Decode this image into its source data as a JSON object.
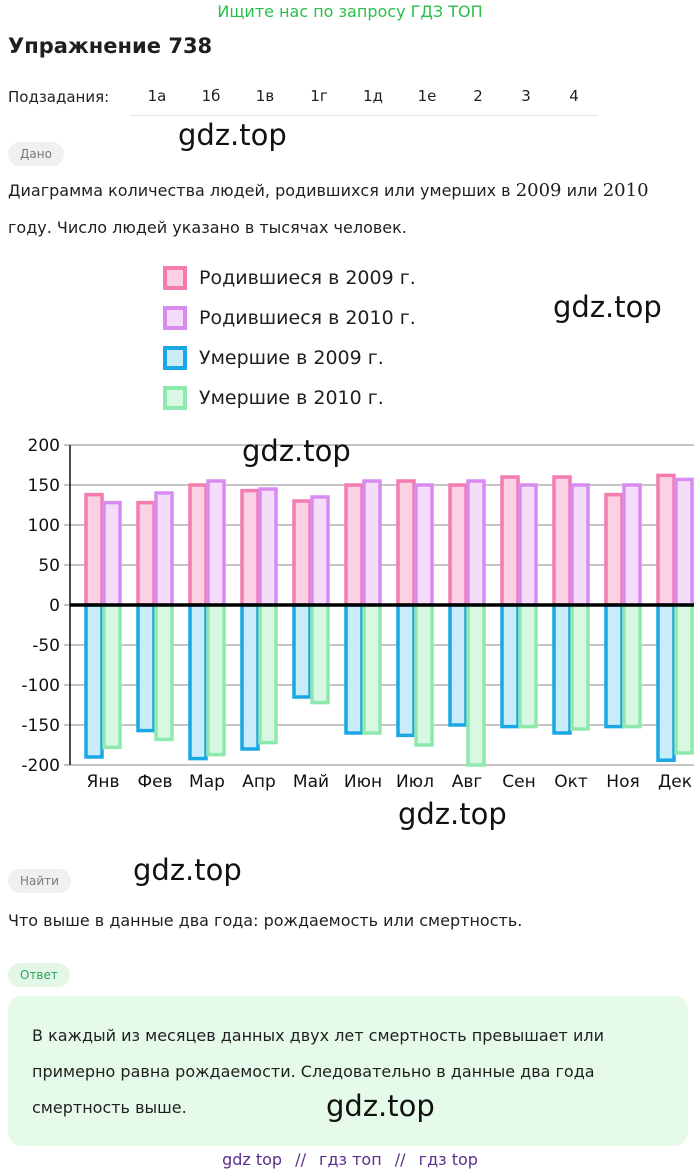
{
  "banner": "Ищите нас по запросу ГДЗ ТОП",
  "title": "Упражнение 738",
  "subtasks": {
    "label": "Подзадания:",
    "items": [
      "1а",
      "1б",
      "1в",
      "1г",
      "1д",
      "1е",
      "2",
      "3",
      "4"
    ],
    "active_index": 3
  },
  "watermark": "gdz.top",
  "given": {
    "pill": "Дано",
    "line1_prefix": "Диаграмма количества людей, родившихся или умерших в ",
    "year1": "2009",
    "or": " или ",
    "year2": "2010",
    "line2": "году. Число людей указано в тысячах человек."
  },
  "find": {
    "pill": "Найти",
    "text": "Что выше в данные два года: рождаемость или смертность."
  },
  "answer": {
    "pill": "Ответ",
    "line1": "В каждый из месяцев данных двух лет смертность превышает или",
    "line2": "примерно равна рождаемости. Следовательно в данные два года",
    "line3": "смертность выше."
  },
  "footer": {
    "link1": "gdz top",
    "sep1": "//",
    "link2": "гдз топ",
    "sep2": "//",
    "link3": "гдз top"
  },
  "colors": {
    "births2009_stroke": "#f47cb0",
    "births2009_fill": "#fbd1e3",
    "births2010_stroke": "#d88cf0",
    "births2010_fill": "#f5dcfb",
    "deaths2009_stroke": "#1aa7e6",
    "deaths2009_fill": "#c9ecfa",
    "deaths2010_stroke": "#8fe8ae",
    "deaths2010_fill": "#d9f8e4",
    "active_tab": "#1aa3e0",
    "banner": "#27c04a",
    "answer_bg": "#e6faea"
  },
  "chart_data": {
    "type": "bar",
    "categories": [
      "Янв",
      "Фев",
      "Мар",
      "Апр",
      "Май",
      "Июн",
      "Июл",
      "Авг",
      "Сен",
      "Окт",
      "Ноя",
      "Дек"
    ],
    "series": [
      {
        "name": "Родившиеся в 2009 г.",
        "values": [
          138,
          128,
          150,
          143,
          130,
          150,
          155,
          150,
          160,
          160,
          138,
          162
        ]
      },
      {
        "name": "Родившиеся в 2010 г.",
        "values": [
          128,
          140,
          155,
          145,
          135,
          155,
          150,
          155,
          150,
          150,
          150,
          157
        ]
      },
      {
        "name": "Умершие в 2009 г.",
        "values": [
          -190,
          -157,
          -192,
          -180,
          -115,
          -160,
          -163,
          -150,
          -152,
          -160,
          -152,
          -194
        ]
      },
      {
        "name": "Умершие в 2010 г.",
        "values": [
          -178,
          -168,
          -187,
          -172,
          -122,
          -160,
          -175,
          -200,
          -152,
          -155,
          -152,
          -185
        ]
      }
    ],
    "yticks": [
      200,
      150,
      100,
      50,
      0,
      -50,
      -100,
      -150,
      -200
    ],
    "ylim": [
      -200,
      200
    ],
    "grid": true,
    "legend_position": "top"
  }
}
